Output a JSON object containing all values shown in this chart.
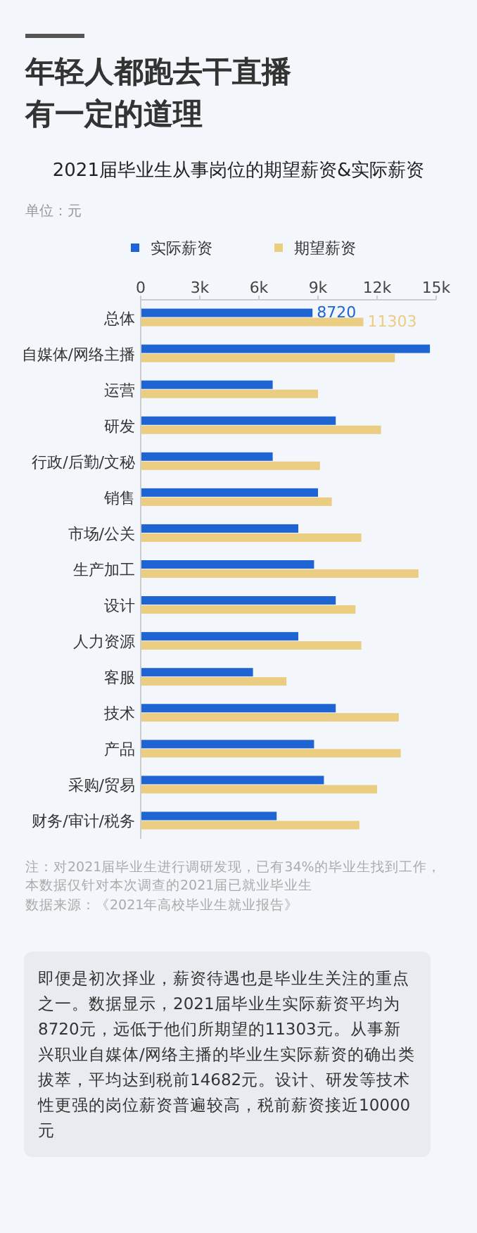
{
  "chart_data": {
    "type": "bar",
    "orientation": "horizontal",
    "title": "年轻人都跑去干直播有一定的道理",
    "subtitle": "2021届毕业生从事岗位的期望薪资&实际薪资",
    "categories": [
      "总体",
      "自媒体/网络主播",
      "运营",
      "研发",
      "行政/后勤/文秘",
      "销售",
      "市场/公关",
      "生产加工",
      "设计",
      "人力资源",
      "客服",
      "技术",
      "产品",
      "采购/贸易",
      "财务/审计/税务"
    ],
    "series": [
      {
        "name": "实际薪资",
        "color": "#1e64d2",
        "values": [
          8720,
          14682,
          6700,
          9900,
          6700,
          9000,
          8000,
          8800,
          9900,
          8000,
          5700,
          9900,
          8800,
          9300,
          6900
        ],
        "value_labels": [
          "8720",
          null,
          null,
          null,
          null,
          null,
          null,
          null,
          null,
          null,
          null,
          null,
          null,
          null,
          null
        ]
      },
      {
        "name": "期望薪资",
        "color": "#ebcd82",
        "values": [
          11303,
          12900,
          9000,
          12200,
          9100,
          9700,
          11200,
          14100,
          10900,
          11200,
          7400,
          13100,
          13200,
          12000,
          11100
        ],
        "value_labels": [
          "11303",
          null,
          null,
          null,
          null,
          null,
          null,
          null,
          null,
          null,
          null,
          null,
          null,
          null,
          null
        ]
      }
    ],
    "xlim": [
      0,
      15000
    ],
    "xticks": [
      {
        "value": 0,
        "label": "0"
      },
      {
        "value": 3000,
        "label": "3k"
      },
      {
        "value": 6000,
        "label": "6k"
      },
      {
        "value": 9000,
        "label": "9k"
      },
      {
        "value": 12000,
        "label": "12k"
      },
      {
        "value": 15000,
        "label": "15k"
      }
    ],
    "legend": "top",
    "annotations": [
      "单位：元",
      "注：对2021届毕业生进行调研发现，已有34%的毕业生找到工作，本数据仅针对本次调查的2021届已就业毕业生",
      "数据来源：《2021年高校毕业生就业报告》",
      "即便是初次择业，薪资待遇也是毕业生关注的重点之一。数据显示，2021届毕业生实际薪资平均为8720元，远低于他们所期望的11303元。从事新兴职业自媒体/网络主播的毕业生实际薪资的确出类拔萃，平均达到税前14682元。设计、研发等技术性更强的岗位薪资普遍较高，税前薪资接近10000元"
    ]
  }
}
